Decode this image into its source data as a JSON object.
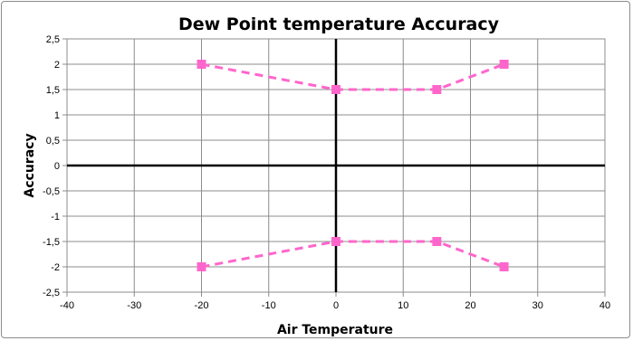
{
  "chart_data": {
    "type": "scatter",
    "title": "Dew Point temperature Accuracy",
    "xlabel": "Air Temperature",
    "ylabel": "Accuracy",
    "xlim": [
      -40,
      40
    ],
    "ylim": [
      -2.5,
      2.5
    ],
    "x_ticks": [
      -40,
      -30,
      -20,
      -10,
      0,
      10,
      20,
      30,
      40
    ],
    "x_tick_labels": [
      "-40",
      "-30",
      "-20",
      "-10",
      "0",
      "10",
      "20",
      "30",
      "40"
    ],
    "y_ticks": [
      2.5,
      2,
      1.5,
      1,
      0.5,
      0,
      -0.5,
      -1,
      -1.5,
      -2,
      -2.5
    ],
    "y_tick_labels": [
      "2,5",
      "2",
      "1,5",
      "1",
      "0,5",
      "0",
      "-0,5",
      "-1",
      "-1,5",
      "-2",
      "-2,5"
    ],
    "grid": true,
    "legend": false,
    "series": [
      {
        "x": [
          -20,
          0,
          15,
          25
        ],
        "y": [
          2,
          1.5,
          1.5,
          2
        ],
        "color": "#ff66cc",
        "line": "dashed",
        "marker": "square"
      },
      {
        "x": [
          -20,
          0,
          15,
          25
        ],
        "y": [
          -2,
          -1.5,
          -1.5,
          -2
        ],
        "color": "#ff66cc",
        "line": "dashed",
        "marker": "square"
      }
    ]
  }
}
